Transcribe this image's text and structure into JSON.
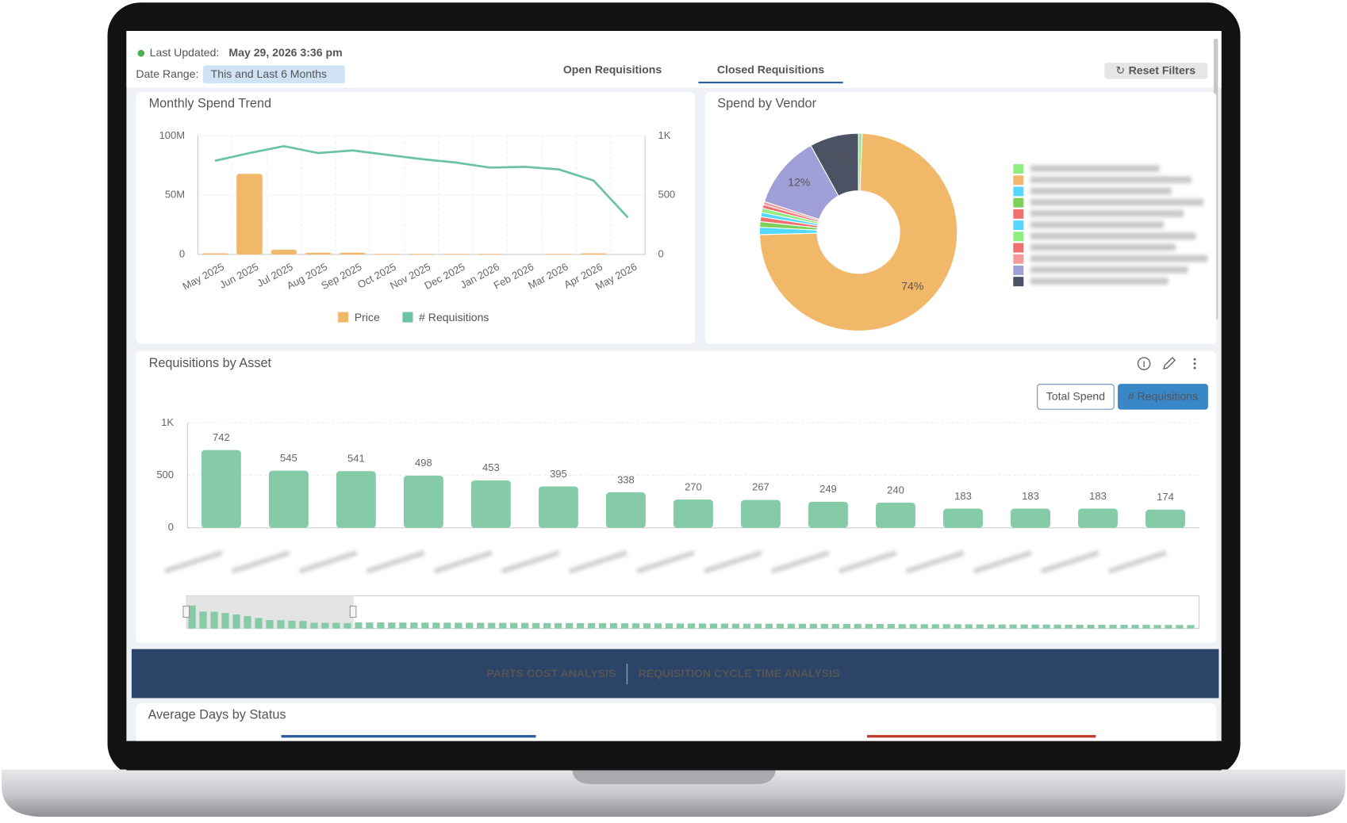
{
  "header": {
    "last_updated_label": "Last Updated:",
    "last_updated": "May 29, 2026 3:36 pm",
    "date_range_label": "Date Range:",
    "date_range": "This and Last 6 Months"
  },
  "tabs": [
    {
      "label": "Open Requisitions",
      "active": false
    },
    {
      "label": "Closed Requisitions",
      "active": true
    }
  ],
  "reset_filters": "Reset Filters",
  "chart_data": [
    {
      "type": "combo",
      "title": "Monthly Spend Trend",
      "categories": [
        "May 2025",
        "Jun 2025",
        "Jul 2025",
        "Aug 2025",
        "Sep 2025",
        "Oct 2025",
        "Nov 2025",
        "Dec 2025",
        "Jan 2026",
        "Feb 2026",
        "Mar 2026",
        "Apr 2026",
        "May 2026"
      ],
      "series": [
        {
          "name": "Price",
          "color": "#f2b86a",
          "kind": "bar",
          "values": [
            1000000,
            68000000,
            4000000,
            1500000,
            1500000,
            500000,
            500000,
            500000,
            500000,
            0,
            500000,
            1000000,
            0
          ]
        },
        {
          "name": "# Requisitions",
          "color": "#6cc3a0",
          "kind": "line",
          "axis": "y2",
          "values": [
            790,
            855,
            913,
            855,
            877,
            840,
            804,
            775,
            732,
            739,
            717,
            623,
            312
          ]
        }
      ],
      "ylim": [
        0,
        100000000
      ],
      "yticks": [
        {
          "value": 0,
          "label": "0"
        },
        {
          "value": 50000000,
          "label": "50M"
        },
        {
          "value": 100000000,
          "label": "100M"
        }
      ],
      "y2lim": [
        0,
        1000
      ],
      "y2ticks": [
        0,
        500,
        {
          "value": 1000,
          "label": "1K"
        }
      ],
      "grid": true
    },
    {
      "type": "donut",
      "title": "Spend by Vendor",
      "values": [
        0.6,
        74,
        1.2,
        0.9,
        0.8,
        0.7,
        0.7,
        0.6,
        0.5,
        12,
        8
      ],
      "value_labels": [
        null,
        "74%",
        null,
        null,
        null,
        null,
        null,
        null,
        null,
        "12%",
        "8%"
      ],
      "colors": [
        "#90ee7e",
        "#f2b86a",
        "#55d8fe",
        "#7bd15a",
        "#f07070",
        "#55d8fe",
        "#90ee7e",
        "#f07070",
        "#f59a9a",
        "#a19fd8",
        "#4a5263"
      ]
    },
    {
      "type": "bar",
      "title": "Requisitions by Asset",
      "buttons": [
        {
          "label": "Total Spend",
          "active": false
        },
        {
          "label": "# Requisitions",
          "active": true
        }
      ],
      "categories": [
        null,
        null,
        null,
        null,
        null,
        null,
        null,
        null,
        null,
        null,
        null,
        null,
        null,
        null,
        null
      ],
      "values": [
        742,
        545,
        541,
        498,
        453,
        395,
        338,
        270,
        267,
        249,
        240,
        183,
        183,
        183,
        174
      ],
      "color": "#85cba8",
      "ylim": [
        0,
        1000
      ],
      "yticks": [
        0,
        500,
        {
          "value": 1000,
          "label": "1K"
        }
      ],
      "grid": true
    }
  ],
  "sections": [
    "PARTS COST ANALYSIS",
    "REQUISITION CYCLE TIME ANALYSIS"
  ],
  "bottom_card": {
    "title": "Average Days by Status"
  }
}
